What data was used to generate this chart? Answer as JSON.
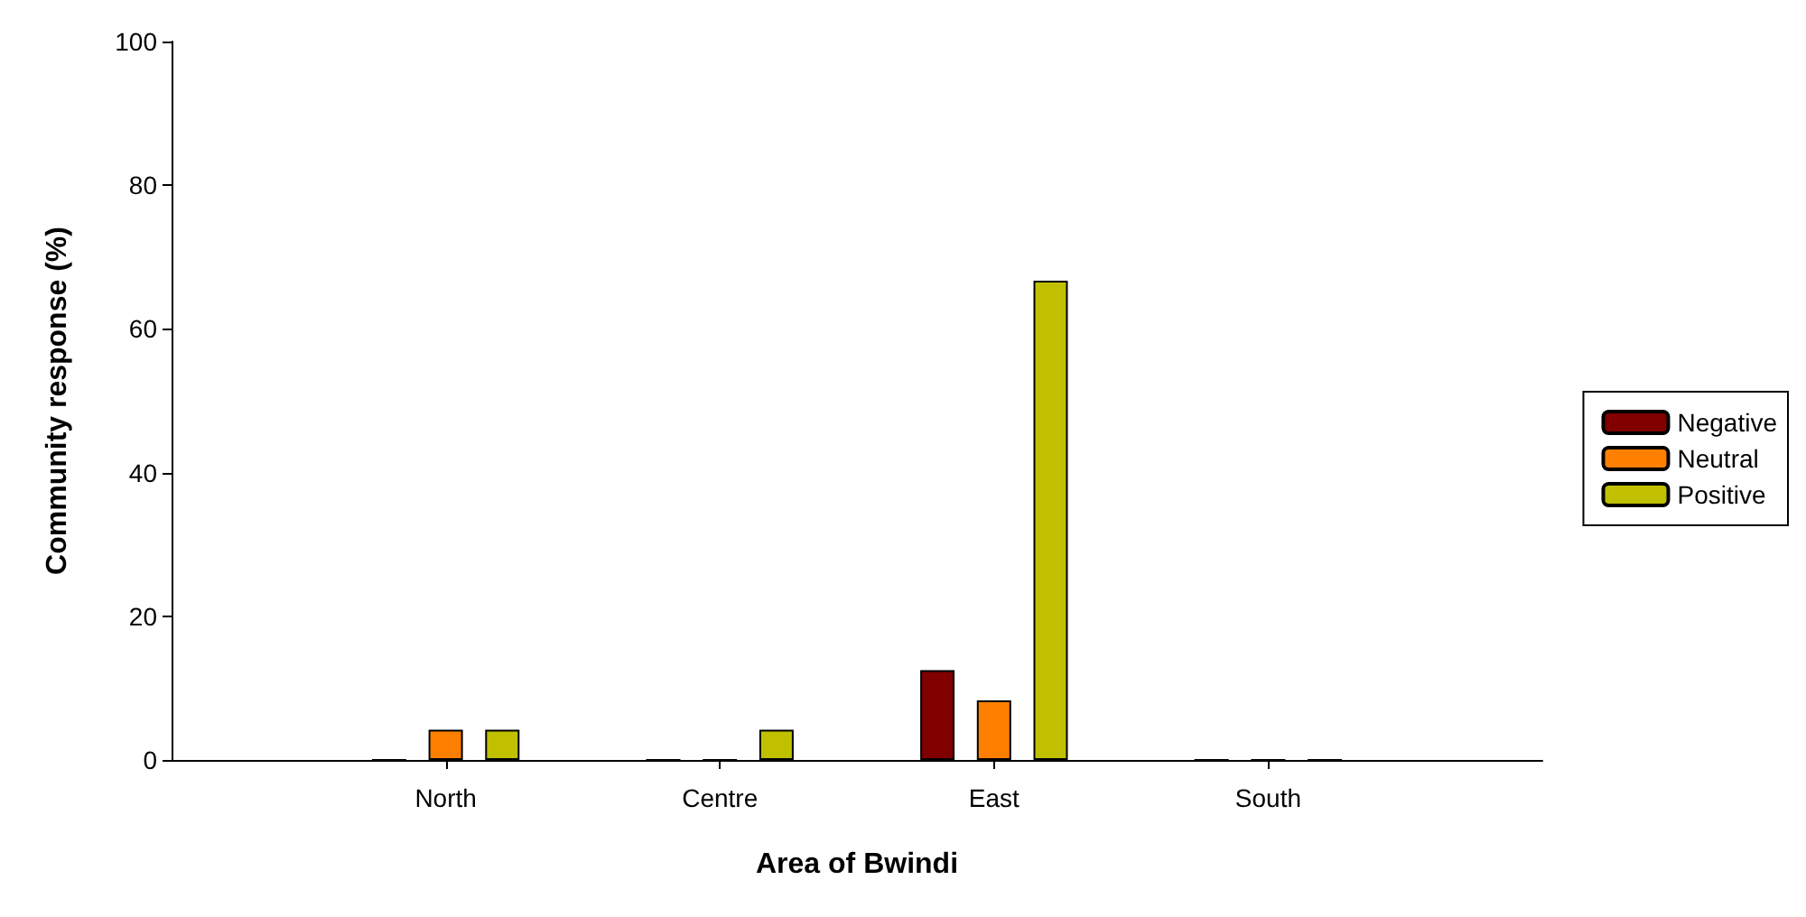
{
  "chart_data": {
    "type": "bar",
    "xlabel": "Area of Bwindi",
    "ylabel": "Community response (%)",
    "categories": [
      "North",
      "Centre",
      "East",
      "South"
    ],
    "series": [
      {
        "name": "Negative",
        "color": "#800000",
        "values": [
          0,
          0,
          12.5,
          0
        ]
      },
      {
        "name": "Neutral",
        "color": "#ff8000",
        "values": [
          4.2,
          0,
          8.3,
          0
        ]
      },
      {
        "name": "Positive",
        "color": "#c0c000",
        "values": [
          4.2,
          4.2,
          66.7,
          0
        ]
      }
    ],
    "ylim": [
      0,
      100
    ],
    "yticks": [
      0,
      20,
      40,
      60,
      80,
      100
    ],
    "grid": false,
    "legend": "right"
  }
}
